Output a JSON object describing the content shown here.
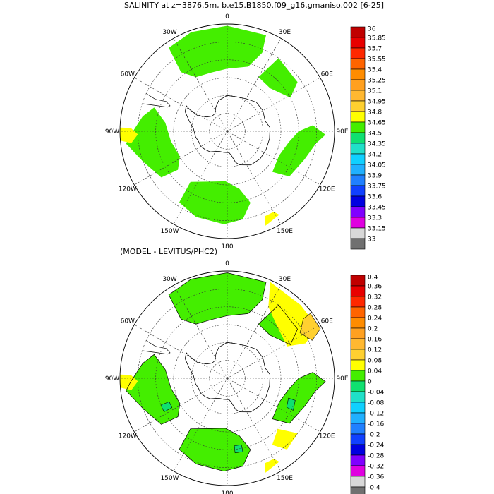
{
  "chart_data": [
    {
      "type": "heatmap",
      "projection": "south polar stereographic",
      "title": "SALINITY at z=3876.5m, b.e15.B1850.f09_g16.gmaniso.002 [6-25]",
      "longitude_labels": {
        "0": "0",
        "30": "30E",
        "60": "60E",
        "90": "90E",
        "120": "120E",
        "150": "150E",
        "180": "180",
        "-150": "150W",
        "-120": "120W",
        "-90": "90W",
        "-60": "60W",
        "-30": "30W"
      },
      "grid": true,
      "legend_placement": "right",
      "colorbar": {
        "levels": [
          "36",
          "35.85",
          "35.7",
          "35.55",
          "35.4",
          "35.25",
          "35.1",
          "34.95",
          "34.8",
          "34.65",
          "34.5",
          "34.35",
          "34.2",
          "34.05",
          "33.9",
          "33.75",
          "33.6",
          "33.45",
          "33.3",
          "33.15",
          "33"
        ],
        "colors": [
          "#c00000",
          "#e80000",
          "#ff2800",
          "#ff6400",
          "#ff8c00",
          "#ffa020",
          "#ffb830",
          "#ffd030",
          "#ffff00",
          "#44ee00",
          "#10e070",
          "#20e0c8",
          "#10d0ff",
          "#20b0ff",
          "#2080ff",
          "#1040ff",
          "#0000e0",
          "#8000ff",
          "#e000e0",
          "#d8d8d8",
          "#707070"
        ]
      },
      "fields": [
        {
          "value_range": "34.65-34.8",
          "color": "#44ee00",
          "regions": [
            "Weddell Sea basin 35W-20E",
            "South Pacific basin 120W-95W",
            "Indian Ocean sector 30E-60E",
            "Australian-Antarctic basin 95E-130E",
            "Ross Sea sector 170E-150W"
          ]
        },
        {
          "value_range": "34.8-34.95",
          "color": "#ffff00",
          "regions": [
            "near 90W at 35S",
            "near 150E at 45S"
          ]
        }
      ]
    },
    {
      "type": "heatmap",
      "projection": "south polar stereographic",
      "title": "(MODEL - LEVITUS/PHC2)",
      "longitude_labels": {
        "0": "0",
        "30": "30E",
        "60": "60E",
        "90": "90E",
        "120": "120E",
        "150": "150E",
        "180": "180",
        "-150": "150W",
        "-120": "120W",
        "-90": "90W",
        "-60": "60W",
        "-30": "30W"
      },
      "grid": true,
      "legend_placement": "right",
      "colorbar": {
        "levels": [
          "0.4",
          "0.36",
          "0.32",
          "0.28",
          "0.24",
          "0.2",
          "0.16",
          "0.12",
          "0.08",
          "0.04",
          "0",
          "-0.04",
          "-0.08",
          "-0.12",
          "-0.16",
          "-0.2",
          "-0.24",
          "-0.28",
          "-0.32",
          "-0.36",
          "-0.4"
        ],
        "colors": [
          "#c00000",
          "#e80000",
          "#ff2800",
          "#ff6400",
          "#ff8c00",
          "#ffa020",
          "#ffb830",
          "#ffd030",
          "#ffff00",
          "#44ee00",
          "#10e070",
          "#20e0c8",
          "#10d0ff",
          "#20b0ff",
          "#2080ff",
          "#1040ff",
          "#0000e0",
          "#8000ff",
          "#e000e0",
          "#d8d8d8",
          "#707070"
        ]
      },
      "fields": [
        {
          "value_range": "0.04-0.08",
          "color": "#44ee00",
          "regions": [
            "Weddell Sea basin",
            "South Pacific basin",
            "Australian-Antarctic basin",
            "Ross Sea sector"
          ]
        },
        {
          "value_range": "0.08-0.12",
          "color": "#ffff00",
          "regions": [
            "South Atlantic 30E-60E",
            "90W at 35S",
            "130E-150E",
            "150E at 45S"
          ]
        },
        {
          "value_range": "0.12-0.16",
          "color": "#ffd030",
          "regions": [
            "near 60E at 35S"
          ]
        },
        {
          "value_range": "0-0.04",
          "color": "#10e070",
          "regions": [
            "small patches near 115W, 115E, 170E"
          ]
        }
      ]
    }
  ]
}
